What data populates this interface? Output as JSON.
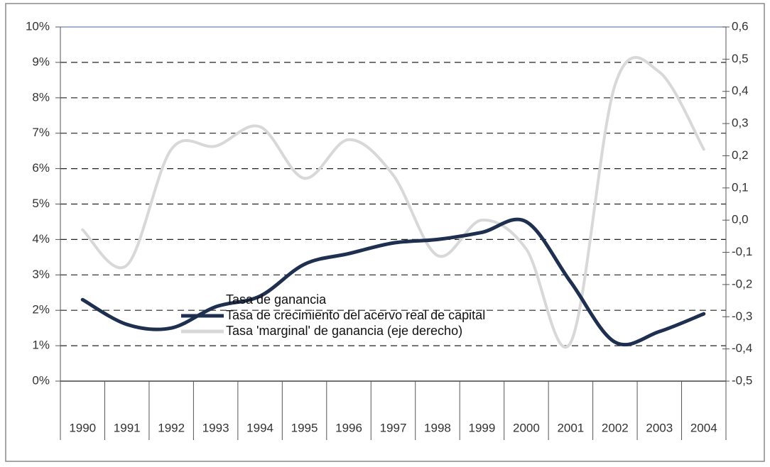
{
  "chart_data": {
    "type": "line",
    "categories": [
      "1990",
      "1991",
      "1992",
      "1993",
      "1994",
      "1995",
      "1996",
      "1997",
      "1998",
      "1999",
      "2000",
      "2001",
      "2002",
      "2003",
      "2004"
    ],
    "series": [
      {
        "name": "Tasa de ganancia",
        "values": [
          null,
          null,
          null,
          null,
          null,
          null,
          null,
          null,
          null,
          null,
          null,
          null,
          null,
          null,
          null
        ]
      },
      {
        "name": "Tasa de crecimiento del acervo real de capital",
        "color": "#1f2f4f",
        "values": [
          2.3,
          1.6,
          1.5,
          2.1,
          2.4,
          3.3,
          3.6,
          3.9,
          4.0,
          4.2,
          4.5,
          2.8,
          1.1,
          1.4,
          1.9
        ]
      },
      {
        "name": "Tasa 'marginal' de ganancia (eje derecho)",
        "color": "#d8d8d8",
        "axis": "y2",
        "values": [
          -0.03,
          -0.14,
          0.22,
          0.23,
          0.29,
          0.13,
          0.25,
          0.14,
          -0.11,
          0.0,
          -0.09,
          -0.38,
          0.42,
          0.46,
          0.22
        ]
      }
    ],
    "ylim": [
      0,
      10
    ],
    "yticks": [
      {
        "value": 0,
        "label": "0%"
      },
      {
        "value": 1,
        "label": "1%"
      },
      {
        "value": 2,
        "label": "2%"
      },
      {
        "value": 3,
        "label": "3%"
      },
      {
        "value": 4,
        "label": "4%"
      },
      {
        "value": 5,
        "label": "5%"
      },
      {
        "value": 6,
        "label": "6%"
      },
      {
        "value": 7,
        "label": "7%"
      },
      {
        "value": 8,
        "label": "8%"
      },
      {
        "value": 9,
        "label": "9%"
      },
      {
        "value": 10,
        "label": "10%"
      }
    ],
    "y2lim": [
      -0.5,
      0.6
    ],
    "y2ticks": [
      {
        "value": -0.5,
        "label": "-0,5"
      },
      {
        "value": -0.4,
        "label": "-0,4"
      },
      {
        "value": -0.3,
        "label": "-0,3"
      },
      {
        "value": -0.2,
        "label": "-0,2"
      },
      {
        "value": -0.1,
        "label": "-0,1"
      },
      {
        "value": 0,
        "label": "0,0"
      },
      {
        "value": 0.1,
        "label": "0,1"
      },
      {
        "value": 0.2,
        "label": "0,2"
      },
      {
        "value": 0.3,
        "label": "0,3"
      },
      {
        "value": 0.4,
        "label": "0,4"
      },
      {
        "value": 0.5,
        "label": "0,5"
      },
      {
        "value": 0.6,
        "label": "0,6"
      }
    ],
    "grid": true
  }
}
